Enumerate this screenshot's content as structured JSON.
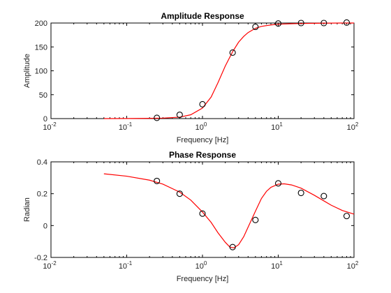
{
  "chart_data": [
    {
      "type": "line",
      "title": "Amplitude Response",
      "xlabel": "Frequency [Hz]",
      "ylabel": "Amplitude",
      "x_scale": "log",
      "xlim": [
        0.01,
        100
      ],
      "ylim": [
        0,
        200
      ],
      "x_ticks": [
        0.01,
        0.1,
        1,
        10,
        100
      ],
      "x_tick_bases": [
        "10",
        "10",
        "10",
        "10",
        "10"
      ],
      "x_tick_exponents": [
        "-2",
        "-1",
        "0",
        "1",
        "2"
      ],
      "y_ticks": [
        0,
        50,
        100,
        150,
        200
      ],
      "y_tick_labels": [
        "0",
        "50",
        "100",
        "150",
        "200"
      ],
      "grid": false,
      "series": [
        {
          "kind": "line",
          "color": "#ff0000",
          "x": [
            0.05,
            0.1,
            0.2,
            0.3,
            0.5,
            0.7,
            1,
            1.3,
            1.6,
            2,
            2.5,
            3,
            3.5,
            4,
            5,
            6,
            8,
            10,
            15,
            20,
            30,
            50,
            70,
            100
          ],
          "y": [
            0,
            0.2,
            0.5,
            1,
            3,
            8,
            22,
            45,
            75,
            110,
            140,
            160,
            172,
            180,
            189,
            193,
            196,
            197.5,
            198.5,
            199,
            199.5,
            199.8,
            200,
            200
          ]
        },
        {
          "kind": "markers",
          "marker": "circle",
          "color": "#000000",
          "x": [
            0.25,
            0.5,
            1,
            2.5,
            5,
            10,
            20,
            40,
            80
          ],
          "y": [
            1.5,
            8,
            30,
            138,
            192,
            199,
            200,
            200,
            201
          ]
        }
      ]
    },
    {
      "type": "line",
      "title": "Phase Response",
      "xlabel": "Frequency [Hz]",
      "ylabel": "Radian",
      "x_scale": "log",
      "xlim": [
        0.01,
        100
      ],
      "ylim": [
        -0.2,
        0.4
      ],
      "x_ticks": [
        0.01,
        0.1,
        1,
        10,
        100
      ],
      "x_tick_bases": [
        "10",
        "10",
        "10",
        "10",
        "10"
      ],
      "x_tick_exponents": [
        "-2",
        "-1",
        "0",
        "1",
        "2"
      ],
      "y_ticks": [
        -0.2,
        0,
        0.2,
        0.4
      ],
      "y_tick_labels": [
        "-0.2",
        "0",
        "0.2",
        "0.4"
      ],
      "grid": false,
      "series": [
        {
          "kind": "line",
          "color": "#ff0000",
          "x": [
            0.05,
            0.1,
            0.2,
            0.3,
            0.5,
            0.7,
            1,
            1.3,
            1.6,
            2,
            2.3,
            2.6,
            3,
            3.5,
            4,
            5,
            6,
            7,
            8,
            10,
            12,
            15,
            20,
            30,
            40,
            50,
            70,
            100
          ],
          "y": [
            0.325,
            0.31,
            0.285,
            0.26,
            0.21,
            0.16,
            0.085,
            0.02,
            -0.045,
            -0.105,
            -0.135,
            -0.14,
            -0.12,
            -0.07,
            -0.01,
            0.09,
            0.17,
            0.215,
            0.24,
            0.26,
            0.262,
            0.255,
            0.235,
            0.19,
            0.155,
            0.128,
            0.095,
            0.072
          ]
        },
        {
          "kind": "markers",
          "marker": "circle",
          "color": "#000000",
          "x": [
            0.25,
            0.5,
            1,
            2.5,
            5,
            10,
            20,
            40,
            80
          ],
          "y": [
            0.28,
            0.2,
            0.075,
            -0.135,
            0.035,
            0.265,
            0.205,
            0.185,
            0.06
          ]
        }
      ]
    }
  ]
}
